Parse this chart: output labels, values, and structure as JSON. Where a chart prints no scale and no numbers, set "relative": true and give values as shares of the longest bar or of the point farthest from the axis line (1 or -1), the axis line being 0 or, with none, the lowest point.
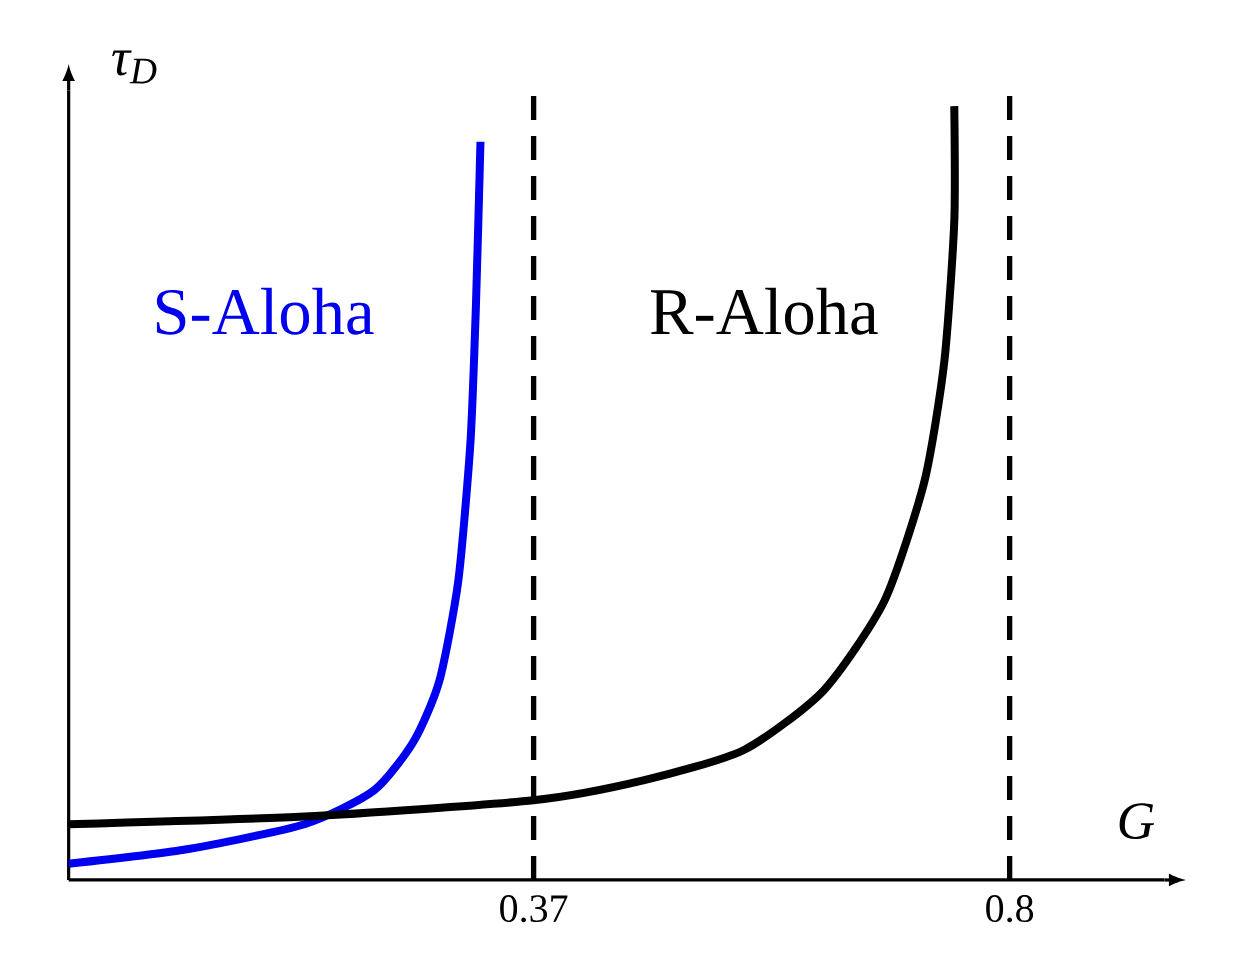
{
  "chart_data": {
    "type": "line",
    "relative": true,
    "xlabel": "G",
    "ylabel": "τ$_{D}$",
    "xlim": [
      -0.05,
      0.94
    ],
    "xticks": [
      0.37,
      0.8
    ],
    "marker": "none",
    "line_style": "solid",
    "tick_labels": "x",
    "series": [
      {
        "name": "S-Aloha",
        "color": "#0000ee",
        "x": [
          -0.05,
          0.054,
          0.163,
          0.226,
          0.262,
          0.285,
          0.302,
          0.313,
          0.318,
          0.322
        ],
        "values": [
          0.021,
          0.039,
          0.072,
          0.116,
          0.18,
          0.258,
          0.387,
          0.567,
          0.747,
          0.954
        ]
      },
      {
        "name": "R-Aloha",
        "color": "#000000",
        "x": [
          -0.05,
          0.163,
          0.37,
          0.47,
          0.56,
          0.632,
          0.687,
          0.723,
          0.741,
          0.75,
          0.75
        ],
        "values": [
          0.072,
          0.082,
          0.103,
          0.129,
          0.168,
          0.245,
          0.361,
          0.515,
          0.67,
          0.851,
          1
        ]
      }
    ],
    "ref_lines": [
      {
        "axis": "x",
        "value": 0.37,
        "line_style": "dashed"
      },
      {
        "axis": "x",
        "value": 0.8,
        "line_style": "dashed"
      }
    ]
  }
}
